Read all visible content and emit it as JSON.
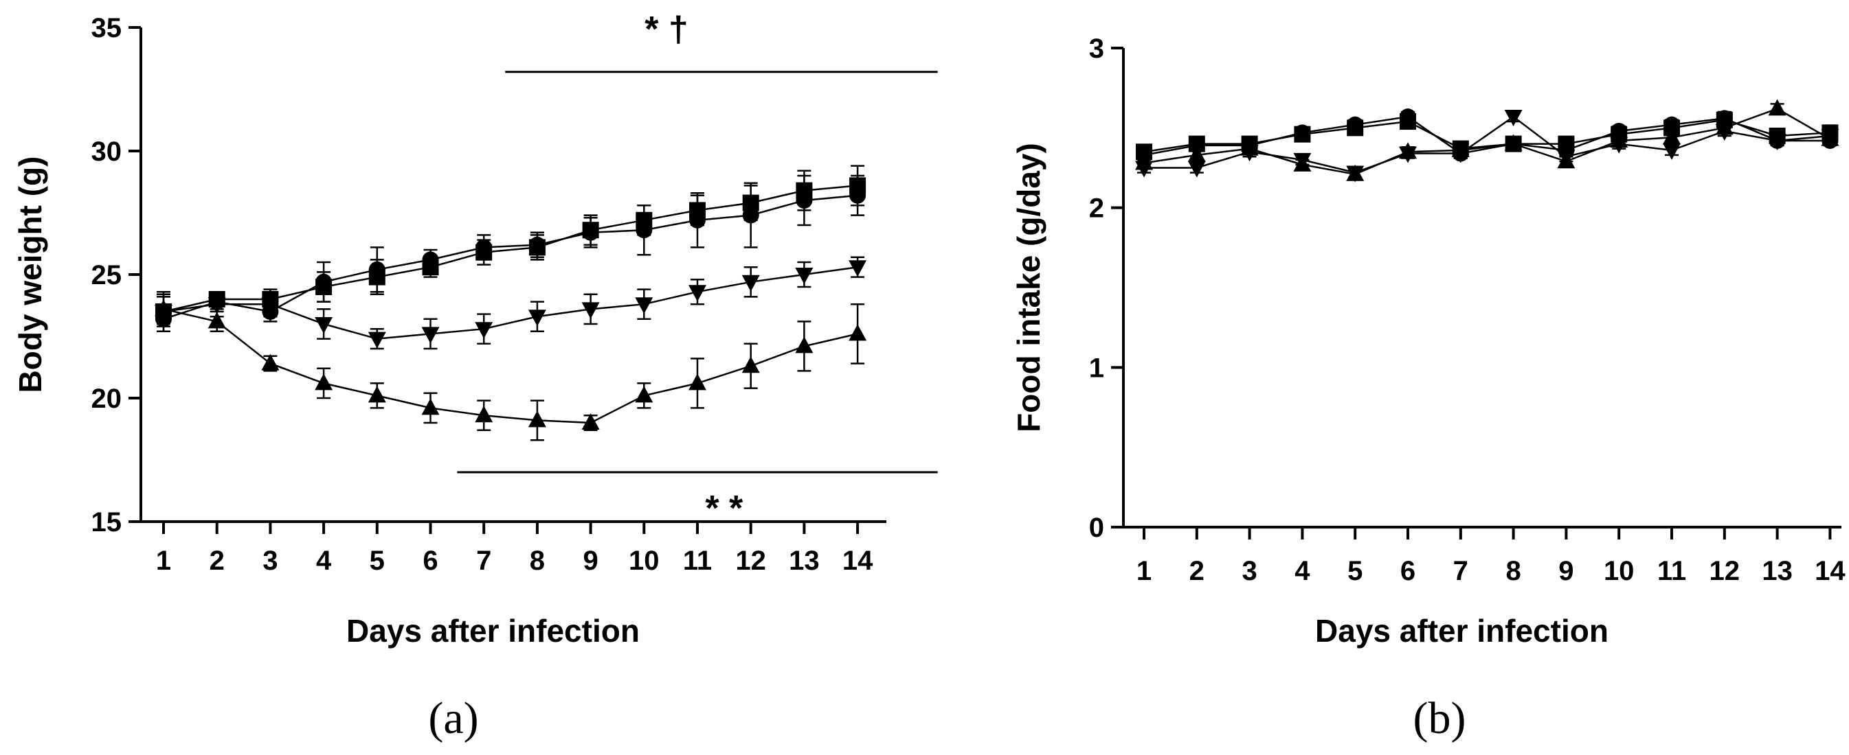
{
  "chart_data": [
    {
      "type": "line",
      "panel_label": "(a)",
      "xlabel": "Days after infection",
      "ylabel": "Body weight (g)",
      "x": [
        1,
        2,
        3,
        4,
        5,
        6,
        7,
        8,
        9,
        10,
        11,
        12,
        13,
        14
      ],
      "ylim": [
        15,
        35
      ],
      "yticks": [
        15,
        20,
        25,
        30,
        35
      ],
      "series": [
        {
          "name": "circle",
          "marker": "circle",
          "values": [
            23.2,
            23.9,
            23.5,
            24.7,
            25.2,
            25.6,
            26.1,
            26.2,
            26.7,
            26.8,
            27.2,
            27.4,
            28.0,
            28.2
          ],
          "errors": [
            0.5,
            0.3,
            0.4,
            0.8,
            0.9,
            0.4,
            0.5,
            0.5,
            0.6,
            1.0,
            1.1,
            1.3,
            1.0,
            0.8
          ]
        },
        {
          "name": "square",
          "marker": "square",
          "values": [
            23.5,
            24.0,
            24.0,
            24.5,
            24.9,
            25.3,
            25.9,
            26.1,
            26.8,
            27.2,
            27.6,
            27.9,
            28.4,
            28.6
          ],
          "errors": [
            0.8,
            0.3,
            0.4,
            0.6,
            0.7,
            0.4,
            0.5,
            0.5,
            0.6,
            0.6,
            0.6,
            0.7,
            0.8,
            0.8
          ]
        },
        {
          "name": "triangle-down",
          "marker": "triangle-down",
          "values": [
            23.5,
            23.8,
            23.8,
            23.0,
            22.4,
            22.6,
            22.8,
            23.3,
            23.6,
            23.8,
            24.3,
            24.7,
            25.0,
            25.3
          ],
          "errors": [
            0.6,
            0.5,
            0.5,
            0.6,
            0.4,
            0.6,
            0.6,
            0.6,
            0.6,
            0.6,
            0.5,
            0.6,
            0.5,
            0.4
          ]
        },
        {
          "name": "triangle-up",
          "marker": "triangle-up",
          "values": [
            23.6,
            23.1,
            21.4,
            20.6,
            20.1,
            19.6,
            19.3,
            19.1,
            19.0,
            20.1,
            20.6,
            21.3,
            22.1,
            22.6
          ],
          "errors": [
            0.6,
            0.4,
            0.3,
            0.6,
            0.5,
            0.6,
            0.6,
            0.8,
            0.3,
            0.5,
            1.0,
            0.9,
            1.0,
            1.2
          ]
        }
      ],
      "annotations": [
        {
          "text": "* †",
          "span": [
            7.4,
            15.5
          ],
          "y": 33.2
        },
        {
          "text": "* *",
          "span": [
            6.5,
            15.5
          ],
          "y": 17.0
        }
      ]
    },
    {
      "type": "line",
      "panel_label": "(b)",
      "xlabel": "Days after infection",
      "ylabel": "Food intake (g/day)",
      "x": [
        1,
        2,
        3,
        4,
        5,
        6,
        7,
        8,
        9,
        10,
        11,
        12,
        13,
        14
      ],
      "ylim": [
        0,
        3
      ],
      "yticks": [
        0,
        1,
        2,
        3
      ],
      "series": [
        {
          "name": "circle",
          "marker": "circle",
          "values": [
            2.33,
            2.39,
            2.39,
            2.47,
            2.52,
            2.57,
            2.34,
            2.4,
            2.36,
            2.48,
            2.52,
            2.56,
            2.42,
            2.42
          ],
          "errors": [
            0.03,
            0.03,
            0.03,
            0.03,
            0.03,
            0.03,
            0.03,
            0.03,
            0.03,
            0.03,
            0.03,
            0.04,
            0.03,
            0.03
          ]
        },
        {
          "name": "square",
          "marker": "square",
          "values": [
            2.35,
            2.4,
            2.4,
            2.46,
            2.5,
            2.54,
            2.37,
            2.4,
            2.4,
            2.46,
            2.5,
            2.55,
            2.45,
            2.47
          ],
          "errors": [
            0.03,
            0.03,
            0.03,
            0.03,
            0.03,
            0.03,
            0.03,
            0.03,
            0.03,
            0.03,
            0.03,
            0.05,
            0.03,
            0.03
          ]
        },
        {
          "name": "triangle-down",
          "marker": "triangle-down",
          "values": [
            2.25,
            2.25,
            2.35,
            2.3,
            2.22,
            2.34,
            2.34,
            2.57,
            2.32,
            2.4,
            2.36,
            2.48,
            2.42,
            2.45
          ],
          "errors": [
            0.03,
            0.03,
            0.03,
            0.03,
            0.03,
            0.03,
            0.03,
            0.03,
            0.03,
            0.03,
            0.03,
            0.03,
            0.03,
            0.03
          ]
        },
        {
          "name": "triangle-up",
          "marker": "triangle-up",
          "values": [
            2.28,
            2.33,
            2.37,
            2.27,
            2.21,
            2.35,
            2.36,
            2.4,
            2.29,
            2.42,
            2.44,
            2.5,
            2.62,
            2.43
          ],
          "errors": [
            0.03,
            0.03,
            0.03,
            0.03,
            0.03,
            0.03,
            0.03,
            0.03,
            0.03,
            0.03,
            0.03,
            0.03,
            0.03,
            0.03
          ]
        }
      ],
      "annotations": []
    }
  ]
}
